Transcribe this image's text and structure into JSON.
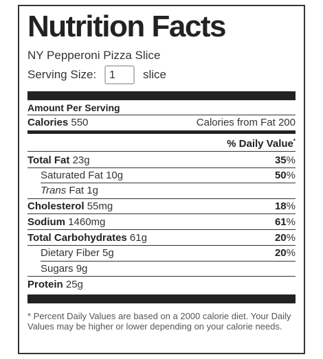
{
  "title": "Nutrition Facts",
  "product_name": "NY Pepperoni Pizza Slice",
  "serving": {
    "label": "Serving Size:",
    "value": "1",
    "unit": "slice"
  },
  "amount_per_serving": "Amount Per Serving",
  "calories": {
    "label": "Calories",
    "value": "550",
    "from_fat_label": "Calories from Fat",
    "from_fat_value": "200"
  },
  "daily_value_header": "% Daily Value",
  "daily_value_mark": "*",
  "nutrients": {
    "total_fat": {
      "label": "Total Fat",
      "amount": "23g",
      "pct": "35",
      "pct_sign": "%"
    },
    "saturated_fat": {
      "label": "Saturated Fat",
      "amount": "10g",
      "pct": "50",
      "pct_sign": "%"
    },
    "trans_fat": {
      "label_italic": "Trans",
      "label": "Fat",
      "amount": "1g"
    },
    "cholesterol": {
      "label": "Cholesterol",
      "amount": "55mg",
      "pct": "18",
      "pct_sign": "%"
    },
    "sodium": {
      "label": "Sodium",
      "amount": "1460mg",
      "pct": "61",
      "pct_sign": "%"
    },
    "total_carbs": {
      "label": "Total Carbohydrates",
      "amount": "61g",
      "pct": "20",
      "pct_sign": "%"
    },
    "dietary_fiber": {
      "label": "Dietary Fiber",
      "amount": "5g",
      "pct": "20",
      "pct_sign": "%"
    },
    "sugars": {
      "label": "Sugars",
      "amount": "9g"
    },
    "protein": {
      "label": "Protein",
      "amount": "25g"
    }
  },
  "footnote": "* Percent Daily Values are based on a 2000 calorie diet. Your Daily Values may be higher or lower depending on your calorie needs."
}
